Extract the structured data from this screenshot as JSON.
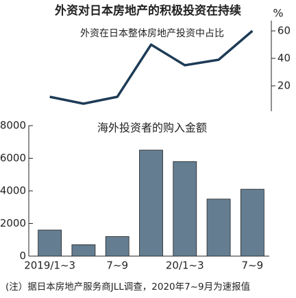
{
  "title": "外资对日本房地产的积极投资在持续",
  "note": "(注）据日本房地产服务商JLL调查，2020年7~9月为速报值",
  "chart_data": [
    {
      "type": "line",
      "title": "外资在日本整体房地产投资中占比",
      "y_unit": "%",
      "values": [
        12,
        7,
        12,
        50,
        35,
        39,
        60
      ],
      "color": "#1d3b56",
      "ylim": [
        0,
        70
      ],
      "yticks": [
        20,
        40,
        60
      ]
    },
    {
      "type": "bar",
      "title": "海外投资者的购入金额",
      "categories": [
        "2019/1~3",
        null,
        "7~9",
        null,
        "20/1~3",
        null,
        "7~9"
      ],
      "values": [
        1600,
        700,
        1200,
        6500,
        5800,
        3500,
        4100
      ],
      "color": "#647d91",
      "ylim": [
        0,
        8000
      ],
      "yticks": [
        0,
        2000,
        4000,
        6000,
        8000
      ]
    }
  ]
}
